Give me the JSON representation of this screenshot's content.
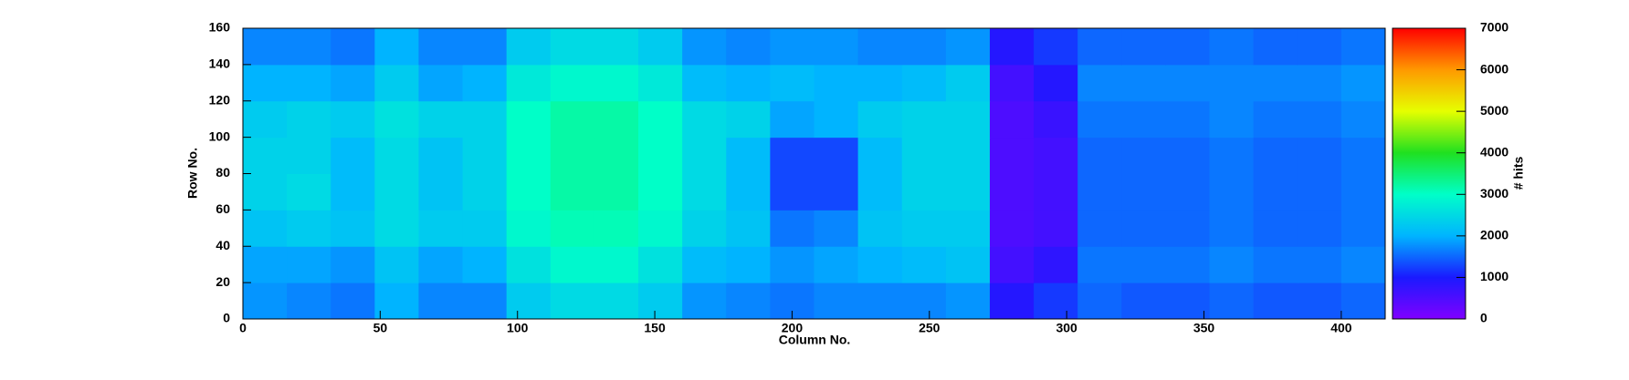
{
  "chart_data": {
    "type": "heatmap",
    "xlabel": "Column No.",
    "ylabel": "Row No.",
    "zlabel": "# hits",
    "xlim": [
      0,
      416
    ],
    "ylim": [
      0,
      160
    ],
    "zlim": [
      0,
      7000
    ],
    "xticks": [
      0,
      50,
      100,
      150,
      200,
      250,
      300,
      350,
      400
    ],
    "yticks": [
      0,
      20,
      40,
      60,
      80,
      100,
      120,
      140,
      160
    ],
    "zticks": [
      0,
      1000,
      2000,
      3000,
      4000,
      5000,
      6000,
      7000
    ],
    "colormap": [
      "#8000ff",
      "#1a1aff",
      "#00b4ff",
      "#00ffc8",
      "#20e020",
      "#e6ff00",
      "#ff9900",
      "#ff0000"
    ],
    "xbins": [
      0,
      16,
      32,
      48,
      64,
      80,
      96,
      112,
      128,
      144,
      160,
      176,
      192,
      208,
      224,
      240,
      256,
      272,
      288,
      304,
      320,
      336,
      352,
      368,
      384,
      400,
      416
    ],
    "ybins": [
      0,
      20,
      40,
      60,
      80,
      100,
      120,
      140,
      160
    ],
    "z": [
      [
        1800,
        1700,
        1600,
        2000,
        1700,
        1700,
        2300,
        2500,
        2500,
        2300,
        1800,
        1700,
        1600,
        1700,
        1700,
        1700,
        1800,
        900,
        1200,
        1500,
        1400,
        1400,
        1500,
        1400,
        1400,
        1500
      ],
      [
        1900,
        1900,
        1800,
        2200,
        1900,
        2000,
        2600,
        2900,
        2900,
        2600,
        2100,
        2000,
        1800,
        1900,
        2000,
        2100,
        2200,
        600,
        800,
        1600,
        1600,
        1600,
        1700,
        1600,
        1600,
        1700
      ],
      [
        2200,
        2300,
        2200,
        2500,
        2300,
        2300,
        2900,
        3100,
        3100,
        2900,
        2400,
        2200,
        1600,
        1700,
        2200,
        2300,
        2300,
        500,
        600,
        1500,
        1500,
        1500,
        1600,
        1500,
        1500,
        1600
      ],
      [
        2400,
        2500,
        2100,
        2500,
        2200,
        2400,
        3000,
        3200,
        3200,
        3000,
        2500,
        2100,
        1300,
        1300,
        2100,
        2400,
        2400,
        500,
        600,
        1500,
        1500,
        1500,
        1600,
        1500,
        1500,
        1600
      ],
      [
        2400,
        2400,
        2100,
        2500,
        2200,
        2400,
        3000,
        3200,
        3200,
        3000,
        2500,
        2100,
        1300,
        1300,
        2100,
        2400,
        2400,
        500,
        600,
        1500,
        1500,
        1500,
        1600,
        1500,
        1500,
        1600
      ],
      [
        2300,
        2400,
        2300,
        2600,
        2400,
        2400,
        3000,
        3200,
        3200,
        3000,
        2500,
        2400,
        1900,
        2000,
        2300,
        2400,
        2400,
        500,
        700,
        1600,
        1600,
        1600,
        1700,
        1600,
        1600,
        1700
      ],
      [
        2000,
        2000,
        1900,
        2300,
        1900,
        2000,
        2700,
        2900,
        2900,
        2700,
        2100,
        2000,
        2100,
        2000,
        2000,
        2100,
        2300,
        600,
        900,
        1700,
        1700,
        1700,
        1700,
        1700,
        1700,
        1800
      ],
      [
        1700,
        1700,
        1600,
        2000,
        1700,
        1700,
        2300,
        2500,
        2500,
        2300,
        1800,
        1700,
        1800,
        1800,
        1700,
        1700,
        1800,
        900,
        1200,
        1500,
        1500,
        1500,
        1600,
        1500,
        1500,
        1600
      ]
    ]
  }
}
